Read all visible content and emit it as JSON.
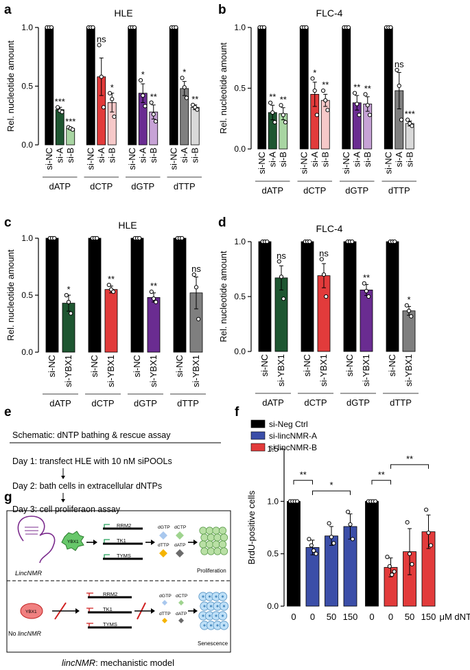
{
  "panels": {
    "a": "a",
    "b": "b",
    "c": "c",
    "d": "d",
    "e": "e",
    "f": "f",
    "g": "g"
  },
  "chart_data": [
    {
      "id": "a",
      "type": "bar",
      "title": "HLE",
      "ylabel": "Rel. nucleotide amount",
      "ylim": [
        0,
        1.0
      ],
      "yticks": [
        "0.0",
        "0.5",
        "1.0"
      ],
      "groups": [
        "dATP",
        "dCTP",
        "dGTP",
        "dTTP"
      ],
      "bars": [
        {
          "group": 0,
          "label": "si-NC",
          "value": 1.0,
          "err": 0,
          "color": "#000000",
          "sig": "",
          "points": [
            1,
            1,
            1
          ]
        },
        {
          "group": 0,
          "label": "si-A",
          "value": 0.3,
          "err": 0.02,
          "color": "#1e5631",
          "sig": "***",
          "points": [
            0.32,
            0.29,
            0.28
          ]
        },
        {
          "group": 0,
          "label": "si-B",
          "value": 0.14,
          "err": 0.01,
          "color": "#a8d5a2",
          "sig": "***",
          "points": [
            0.15,
            0.14,
            0.13
          ]
        },
        {
          "group": 1,
          "label": "si-NC",
          "value": 1.0,
          "err": 0,
          "color": "#000000",
          "sig": "",
          "points": [
            1,
            1,
            1
          ]
        },
        {
          "group": 1,
          "label": "si-A",
          "value": 0.58,
          "err": 0.16,
          "color": "#e23b3b",
          "sig": "ns",
          "points": [
            0.85,
            0.58,
            0.32
          ]
        },
        {
          "group": 1,
          "label": "si-B",
          "value": 0.36,
          "err": 0.08,
          "color": "#f6c9c9",
          "sig": "*",
          "points": [
            0.44,
            0.39,
            0.24
          ]
        },
        {
          "group": 2,
          "label": "si-NC",
          "value": 1.0,
          "err": 0,
          "color": "#000000",
          "sig": "",
          "points": [
            1,
            1,
            1
          ]
        },
        {
          "group": 2,
          "label": "si-A",
          "value": 0.44,
          "err": 0.08,
          "color": "#6a2c91",
          "sig": "*",
          "points": [
            0.55,
            0.42,
            0.33
          ]
        },
        {
          "group": 2,
          "label": "si-B",
          "value": 0.28,
          "err": 0.06,
          "color": "#c7a3d6",
          "sig": "**",
          "points": [
            0.36,
            0.26,
            0.2
          ]
        },
        {
          "group": 3,
          "label": "si-NC",
          "value": 1.0,
          "err": 0,
          "color": "#000000",
          "sig": "",
          "points": [
            1,
            1,
            1
          ]
        },
        {
          "group": 3,
          "label": "si-A",
          "value": 0.48,
          "err": 0.06,
          "color": "#7f7f7f",
          "sig": "*",
          "points": [
            0.57,
            0.49,
            0.4
          ]
        },
        {
          "group": 3,
          "label": "si-B",
          "value": 0.32,
          "err": 0.02,
          "color": "#d9d9d9",
          "sig": "**",
          "points": [
            0.34,
            0.32,
            0.3
          ]
        }
      ]
    },
    {
      "id": "b",
      "type": "bar",
      "title": "FLC-4",
      "ylabel": "Rel. nucleotide amount",
      "ylim": [
        0,
        1.0
      ],
      "yticks": [
        "0.0",
        "0.5",
        "1.0"
      ],
      "groups": [
        "dATP",
        "dCTP",
        "dGTP",
        "dTTP"
      ],
      "bars": [
        {
          "group": 0,
          "label": "si-NC",
          "value": 1.0,
          "err": 0,
          "color": "#000000",
          "sig": "",
          "points": [
            1,
            1,
            1
          ]
        },
        {
          "group": 0,
          "label": "si-A",
          "value": 0.3,
          "err": 0.06,
          "color": "#1e5631",
          "sig": "**",
          "points": [
            0.38,
            0.3,
            0.22
          ]
        },
        {
          "group": 0,
          "label": "si-B",
          "value": 0.29,
          "err": 0.05,
          "color": "#a8d5a2",
          "sig": "**",
          "points": [
            0.36,
            0.28,
            0.22
          ]
        },
        {
          "group": 1,
          "label": "si-NC",
          "value": 1.0,
          "err": 0,
          "color": "#000000",
          "sig": "",
          "points": [
            1,
            1,
            1
          ]
        },
        {
          "group": 1,
          "label": "si-A",
          "value": 0.45,
          "err": 0.1,
          "color": "#e23b3b",
          "sig": "*",
          "points": [
            0.58,
            0.48,
            0.28
          ]
        },
        {
          "group": 1,
          "label": "si-B",
          "value": 0.4,
          "err": 0.05,
          "color": "#f6c9c9",
          "sig": "**",
          "points": [
            0.48,
            0.4,
            0.32
          ]
        },
        {
          "group": 2,
          "label": "si-NC",
          "value": 1.0,
          "err": 0,
          "color": "#000000",
          "sig": "",
          "points": [
            1,
            1,
            1
          ]
        },
        {
          "group": 2,
          "label": "si-A",
          "value": 0.38,
          "err": 0.06,
          "color": "#6a2c91",
          "sig": "**",
          "points": [
            0.46,
            0.37,
            0.28
          ]
        },
        {
          "group": 2,
          "label": "si-B",
          "value": 0.37,
          "err": 0.06,
          "color": "#c7a3d6",
          "sig": "**",
          "points": [
            0.45,
            0.36,
            0.28
          ]
        },
        {
          "group": 3,
          "label": "si-NC",
          "value": 1.0,
          "err": 0,
          "color": "#000000",
          "sig": "",
          "points": [
            1,
            1,
            1
          ]
        },
        {
          "group": 3,
          "label": "si-A",
          "value": 0.48,
          "err": 0.15,
          "color": "#7f7f7f",
          "sig": "ns",
          "points": [
            0.65,
            0.52,
            0.24
          ]
        },
        {
          "group": 3,
          "label": "si-B",
          "value": 0.21,
          "err": 0.02,
          "color": "#d9d9d9",
          "sig": "***",
          "points": [
            0.24,
            0.21,
            0.19
          ]
        }
      ]
    },
    {
      "id": "c",
      "type": "bar",
      "title": "HLE",
      "ylabel": "Rel. nucleotide amount",
      "ylim": [
        0,
        1.0
      ],
      "yticks": [
        "0.0",
        "0.5",
        "1.0"
      ],
      "groups": [
        "dATP",
        "dCTP",
        "dGTP",
        "dTTP"
      ],
      "bars": [
        {
          "group": 0,
          "label": "si-NC",
          "value": 1.0,
          "err": 0,
          "color": "#000000",
          "sig": "",
          "points": [
            1,
            1,
            1
          ]
        },
        {
          "group": 0,
          "label": "si-YBX1",
          "value": 0.43,
          "err": 0.07,
          "color": "#1e5631",
          "sig": "*",
          "points": [
            0.5,
            0.44,
            0.34
          ]
        },
        {
          "group": 1,
          "label": "si-NC",
          "value": 1.0,
          "err": 0,
          "color": "#000000",
          "sig": "",
          "points": [
            1,
            1,
            1
          ]
        },
        {
          "group": 1,
          "label": "si-YBX1",
          "value": 0.55,
          "err": 0.03,
          "color": "#e23b3b",
          "sig": "**",
          "points": [
            0.59,
            0.55,
            0.53
          ]
        },
        {
          "group": 2,
          "label": "si-NC",
          "value": 1.0,
          "err": 0,
          "color": "#000000",
          "sig": "",
          "points": [
            1,
            1,
            1
          ]
        },
        {
          "group": 2,
          "label": "si-YBX1",
          "value": 0.48,
          "err": 0.04,
          "color": "#6a2c91",
          "sig": "**",
          "points": [
            0.53,
            0.47,
            0.44
          ]
        },
        {
          "group": 3,
          "label": "si-NC",
          "value": 1.0,
          "err": 0,
          "color": "#000000",
          "sig": "",
          "points": [
            1,
            1,
            1
          ]
        },
        {
          "group": 3,
          "label": "si-YBX1",
          "value": 0.52,
          "err": 0.14,
          "color": "#7f7f7f",
          "sig": "ns",
          "points": [
            0.68,
            0.57,
            0.29
          ]
        }
      ]
    },
    {
      "id": "d",
      "type": "bar",
      "title": "FLC-4",
      "ylabel": "Rel. nucleotide amount",
      "ylim": [
        0,
        1.0
      ],
      "yticks": [
        "0.0",
        "0.5",
        "1.0"
      ],
      "groups": [
        "dATP",
        "dCTP",
        "dGTP",
        "dTTP"
      ],
      "bars": [
        {
          "group": 0,
          "label": "si-NC",
          "value": 1.0,
          "err": 0,
          "color": "#000000",
          "sig": "",
          "points": [
            1,
            1,
            1
          ]
        },
        {
          "group": 0,
          "label": "si-YBX1",
          "value": 0.67,
          "err": 0.11,
          "color": "#1e5631",
          "sig": "ns",
          "points": [
            0.82,
            0.68,
            0.48
          ]
        },
        {
          "group": 1,
          "label": "si-NC",
          "value": 1.0,
          "err": 0,
          "color": "#000000",
          "sig": "",
          "points": [
            1,
            1,
            1
          ]
        },
        {
          "group": 1,
          "label": "si-YBX1",
          "value": 0.69,
          "err": 0.11,
          "color": "#e23b3b",
          "sig": "ns",
          "points": [
            0.84,
            0.7,
            0.5
          ]
        },
        {
          "group": 2,
          "label": "si-NC",
          "value": 1.0,
          "err": 0,
          "color": "#000000",
          "sig": "",
          "points": [
            1,
            1,
            1
          ]
        },
        {
          "group": 2,
          "label": "si-YBX1",
          "value": 0.56,
          "err": 0.05,
          "color": "#6a2c91",
          "sig": "**",
          "points": [
            0.62,
            0.55,
            0.5
          ]
        },
        {
          "group": 3,
          "label": "si-NC",
          "value": 1.0,
          "err": 0,
          "color": "#000000",
          "sig": "",
          "points": [
            1,
            1,
            1
          ]
        },
        {
          "group": 3,
          "label": "si-YBX1",
          "value": 0.37,
          "err": 0.04,
          "color": "#7f7f7f",
          "sig": "*",
          "points": [
            0.42,
            0.37,
            0.32
          ]
        }
      ]
    },
    {
      "id": "f",
      "type": "bar",
      "title": "",
      "ylabel": "BrdU-positive cells",
      "ylim": [
        0,
        1.5
      ],
      "yticks": [
        "0.0",
        "0.5",
        "1.0",
        "1.5"
      ],
      "xlabel": "μM dNTPs",
      "legend": [
        {
          "label": "si-Neg Ctrl",
          "color": "#000000"
        },
        {
          "label": "si-lincNMR-A",
          "color": "#3b4ea8"
        },
        {
          "label": "si-lincNMR-B",
          "color": "#e23b3b"
        }
      ],
      "bars": [
        {
          "label": "0",
          "value": 1.0,
          "err": 0,
          "color": "#000000",
          "points": [
            1,
            1,
            1,
            1
          ]
        },
        {
          "label": "0",
          "value": 0.56,
          "err": 0.07,
          "color": "#3b4ea8",
          "points": [
            0.64,
            0.58,
            0.53,
            0.5
          ]
        },
        {
          "label": "50",
          "value": 0.67,
          "err": 0.09,
          "color": "#3b4ea8",
          "points": [
            0.79,
            0.66,
            0.6
          ]
        },
        {
          "label": "150",
          "value": 0.76,
          "err": 0.12,
          "color": "#3b4ea8",
          "points": [
            0.9,
            0.78,
            0.64
          ]
        },
        {
          "label": "0",
          "value": 1.0,
          "err": 0,
          "color": "#000000",
          "points": [
            1,
            1,
            1,
            1
          ]
        },
        {
          "label": "0",
          "value": 0.37,
          "err": 0.09,
          "color": "#e23b3b",
          "points": [
            0.47,
            0.38,
            0.3,
            0.33
          ]
        },
        {
          "label": "50",
          "value": 0.52,
          "err": 0.22,
          "color": "#e23b3b",
          "points": [
            0.8,
            0.5,
            0.4
          ]
        },
        {
          "label": "150",
          "value": 0.71,
          "err": 0.16,
          "color": "#e23b3b",
          "points": [
            0.92,
            0.7,
            0.58
          ]
        }
      ],
      "brackets": [
        {
          "from": 0,
          "to": 1,
          "level": 1.2,
          "label": "**"
        },
        {
          "from": 1,
          "to": 3,
          "level": 1.1,
          "label": "*"
        },
        {
          "from": 4,
          "to": 5,
          "level": 1.2,
          "label": "**"
        },
        {
          "from": 5,
          "to": 7,
          "level": 1.35,
          "label": "**"
        }
      ]
    }
  ],
  "schematic_e": {
    "title": "Schematic: dNTP bathing & rescue assay",
    "steps": [
      "Day 1: transfect HLE with 10 nM siPOOLs",
      "Day 2: bath cells in extracellular dNTPs",
      "Day 3: cell proliferaon assay"
    ]
  },
  "model_g": {
    "caption_italic": "lincNMR",
    "caption_rest": ": mechanistic model",
    "top": {
      "rna_label": "LincNMR",
      "protein": "YBX1",
      "genes": [
        "RRM2",
        "TK1",
        "TYMS"
      ],
      "nucleotides": [
        "dGTP",
        "dCTP",
        "dTTP",
        "dATP"
      ],
      "outcome": "Proliferation"
    },
    "bottom": {
      "no_label": "No ",
      "no_label_italic": "lincNMR",
      "protein": "YBX1",
      "genes": [
        "RRM2",
        "TK1",
        "TYMS"
      ],
      "nucleotides": [
        "dGTP",
        "dCTP",
        "dTTP",
        "dATP"
      ],
      "outcome": "Senescence"
    }
  }
}
